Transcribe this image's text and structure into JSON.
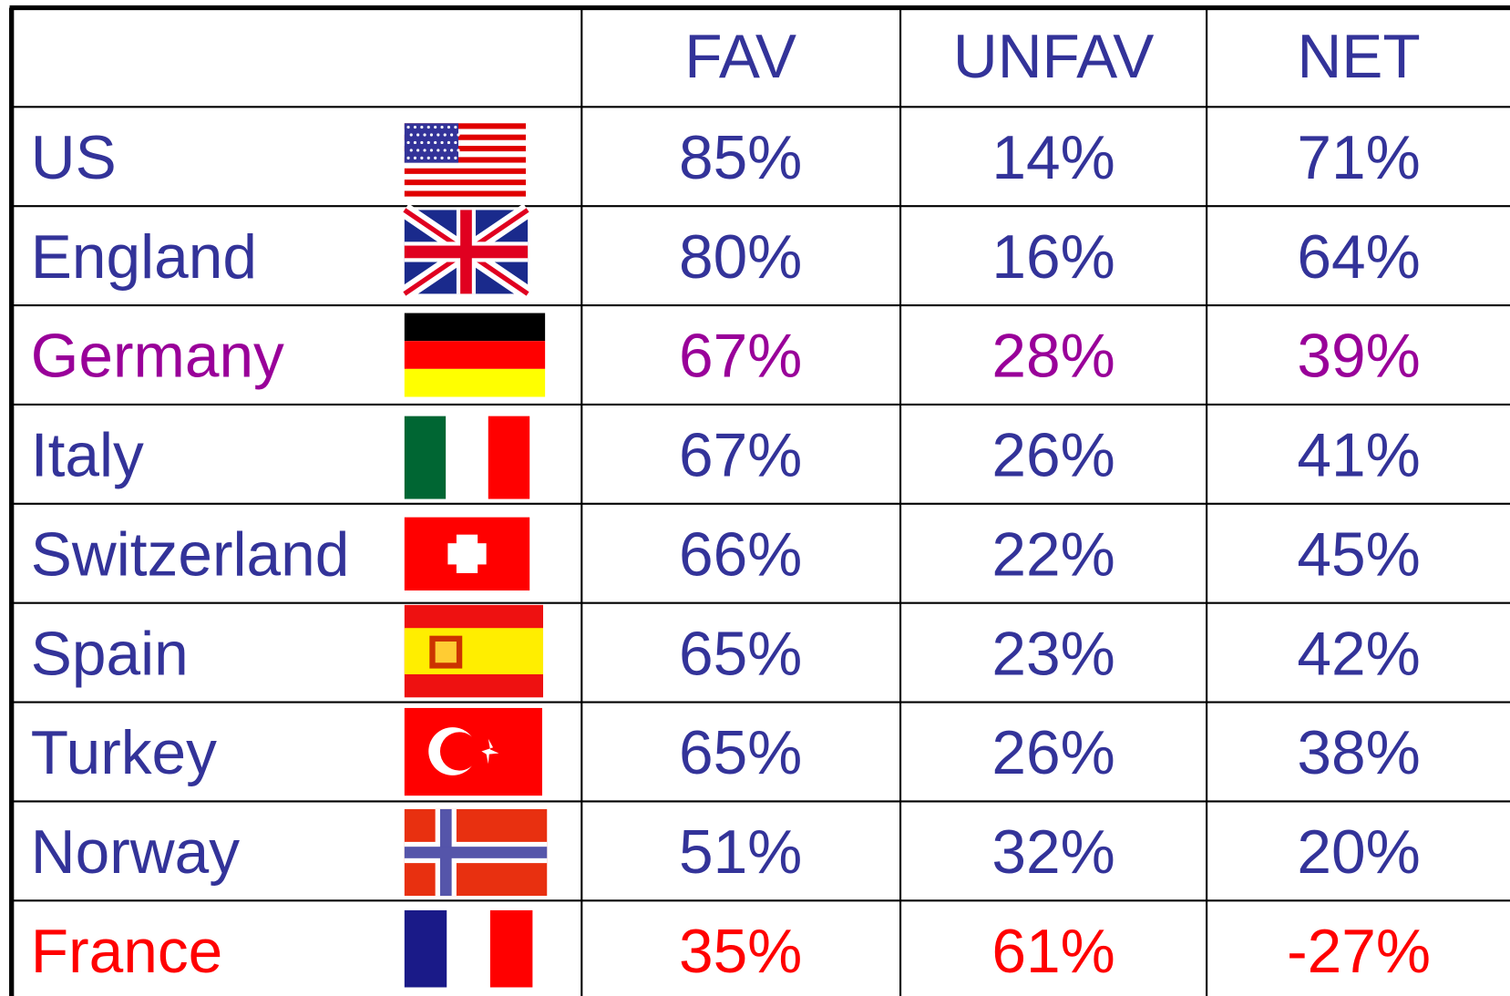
{
  "table": {
    "columns": [
      "FAV",
      "UNFAV",
      "NET"
    ],
    "rows": [
      {
        "country": "US",
        "cells": [
          "85%",
          "14%",
          "71%"
        ],
        "color": "#333399"
      },
      {
        "country": "England",
        "cells": [
          "80%",
          "16%",
          "64%"
        ],
        "color": "#333399"
      },
      {
        "country": "Germany",
        "cells": [
          "67%",
          "28%",
          "39%"
        ],
        "color": "#990099"
      },
      {
        "country": "Italy",
        "cells": [
          "67%",
          "26%",
          "41%"
        ],
        "color": "#333399"
      },
      {
        "country": "Switzerland",
        "cells": [
          "66%",
          "22%",
          "45%"
        ],
        "color": "#333399"
      },
      {
        "country": "Spain",
        "cells": [
          "65%",
          "23%",
          "42%"
        ],
        "color": "#333399"
      },
      {
        "country": "Turkey",
        "cells": [
          "65%",
          "26%",
          "38%"
        ],
        "color": "#333399"
      },
      {
        "country": "Norway",
        "cells": [
          "51%",
          "32%",
          "20%"
        ],
        "color": "#333399"
      },
      {
        "country": "France",
        "cells": [
          "35%",
          "61%",
          "-27%"
        ],
        "color": "#ff0000"
      }
    ]
  }
}
